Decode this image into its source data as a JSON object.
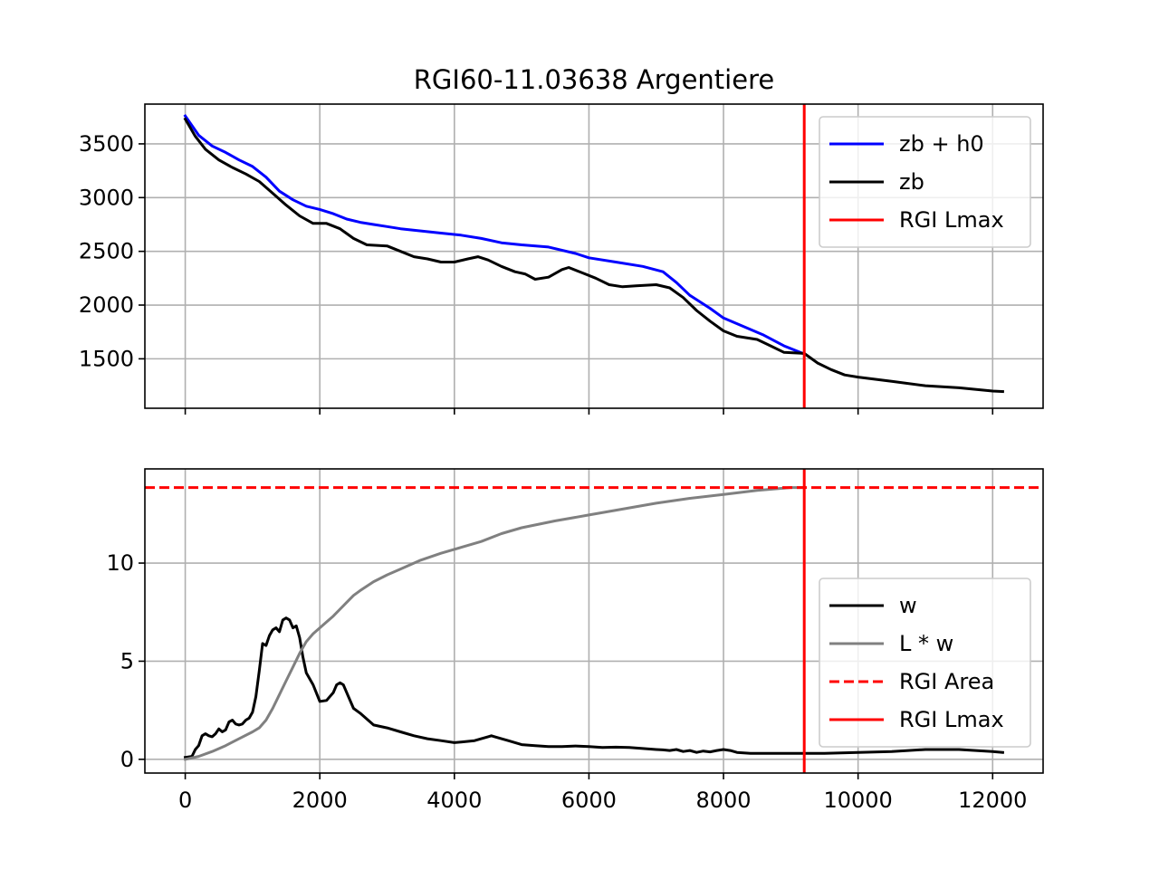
{
  "chart_data": [
    {
      "type": "line",
      "title": "RGI60-11.03638 Argentiere",
      "xlabel": "",
      "ylabel": "",
      "xlim": [
        -600,
        12750
      ],
      "ylim": [
        1040,
        3870
      ],
      "xticks": [
        0,
        2000,
        4000,
        6000,
        8000,
        10000,
        12000
      ],
      "xtick_labels": [
        "",
        "",
        "",
        "",
        "",
        "",
        ""
      ],
      "yticks": [
        1500,
        2000,
        2500,
        3000,
        3500
      ],
      "ytick_labels": [
        "1500",
        "2000",
        "2500",
        "3000",
        "3500"
      ],
      "grid": true,
      "legend_position": "upper right",
      "series": [
        {
          "name": "zb + h0",
          "color": "#0000ff",
          "style": "solid",
          "x": [
            0,
            200,
            400,
            600,
            800,
            1000,
            1200,
            1400,
            1600,
            1800,
            2000,
            2200,
            2400,
            2600,
            2800,
            3000,
            3200,
            3500,
            3800,
            4100,
            4400,
            4700,
            5000,
            5400,
            5800,
            6000,
            6400,
            6800,
            7100,
            7300,
            7500,
            7800,
            8000,
            8300,
            8600,
            8900,
            9200
          ],
          "y": [
            3760,
            3580,
            3480,
            3420,
            3350,
            3290,
            3190,
            3060,
            2980,
            2920,
            2890,
            2850,
            2800,
            2770,
            2750,
            2730,
            2710,
            2690,
            2670,
            2650,
            2620,
            2580,
            2560,
            2540,
            2480,
            2440,
            2400,
            2360,
            2310,
            2210,
            2090,
            1970,
            1880,
            1800,
            1720,
            1620,
            1545
          ]
        },
        {
          "name": "zb",
          "color": "#000000",
          "style": "solid",
          "x": [
            0,
            150,
            300,
            500,
            700,
            900,
            1100,
            1300,
            1500,
            1700,
            1900,
            2100,
            2300,
            2500,
            2700,
            3000,
            3200,
            3400,
            3600,
            3800,
            4000,
            4200,
            4350,
            4500,
            4700,
            4900,
            5050,
            5200,
            5400,
            5600,
            5700,
            5900,
            6100,
            6300,
            6500,
            6700,
            7000,
            7200,
            7400,
            7600,
            7800,
            8000,
            8200,
            8500,
            8700,
            8900,
            9200,
            9400,
            9600,
            9800,
            10000,
            10500,
            11000,
            11500,
            12000,
            12150
          ],
          "y": [
            3730,
            3570,
            3450,
            3350,
            3280,
            3220,
            3150,
            3040,
            2930,
            2830,
            2760,
            2760,
            2710,
            2620,
            2560,
            2550,
            2500,
            2450,
            2430,
            2400,
            2400,
            2430,
            2450,
            2420,
            2360,
            2310,
            2290,
            2240,
            2260,
            2330,
            2350,
            2300,
            2250,
            2190,
            2170,
            2180,
            2190,
            2160,
            2070,
            1950,
            1850,
            1760,
            1710,
            1680,
            1620,
            1560,
            1550,
            1460,
            1400,
            1350,
            1330,
            1290,
            1250,
            1230,
            1200,
            1195
          ]
        },
        {
          "name": "RGI Lmax",
          "color": "#ff0000",
          "style": "solid",
          "orientation": "vertical",
          "x": [
            9200,
            9200
          ],
          "y": [
            1040,
            3870
          ]
        }
      ]
    },
    {
      "type": "line",
      "title": "",
      "xlabel": "",
      "ylabel": "",
      "xlim": [
        -600,
        12750
      ],
      "ylim": [
        -0.7,
        14.8
      ],
      "xticks": [
        0,
        2000,
        4000,
        6000,
        8000,
        10000,
        12000
      ],
      "xtick_labels": [
        "0",
        "2000",
        "4000",
        "6000",
        "8000",
        "10000",
        "12000"
      ],
      "yticks": [
        0,
        5,
        10
      ],
      "ytick_labels": [
        "0",
        "5",
        "10"
      ],
      "grid": true,
      "legend_position": "center right",
      "series": [
        {
          "name": "w",
          "color": "#000000",
          "style": "solid",
          "x": [
            0,
            100,
            150,
            200,
            250,
            300,
            350,
            400,
            450,
            500,
            550,
            600,
            650,
            700,
            750,
            800,
            850,
            900,
            950,
            1000,
            1050,
            1100,
            1150,
            1200,
            1250,
            1300,
            1350,
            1400,
            1450,
            1500,
            1550,
            1600,
            1650,
            1700,
            1750,
            1800,
            1900,
            2000,
            2100,
            2200,
            2250,
            2300,
            2350,
            2400,
            2500,
            2600,
            2800,
            3000,
            3200,
            3400,
            3600,
            3800,
            4000,
            4100,
            4300,
            4400,
            4500,
            4550,
            4600,
            4700,
            4800,
            5000,
            5200,
            5400,
            5600,
            5800,
            6000,
            6200,
            6400,
            6600,
            6800,
            7000,
            7100,
            7200,
            7300,
            7400,
            7500,
            7600,
            7700,
            7800,
            7900,
            8000,
            8100,
            8200,
            8400,
            8600,
            8800,
            9000,
            9200,
            9500,
            10000,
            10500,
            11000,
            11500,
            12000,
            12150
          ],
          "y": [
            0.1,
            0.15,
            0.5,
            0.7,
            1.2,
            1.3,
            1.2,
            1.15,
            1.3,
            1.55,
            1.4,
            1.5,
            1.9,
            2.0,
            1.8,
            1.75,
            1.8,
            2.0,
            2.1,
            2.4,
            3.2,
            4.5,
            5.9,
            5.8,
            6.3,
            6.6,
            6.7,
            6.5,
            7.1,
            7.2,
            7.1,
            6.7,
            6.8,
            6.2,
            5.2,
            4.4,
            3.8,
            2.95,
            3.0,
            3.4,
            3.8,
            3.9,
            3.8,
            3.4,
            2.6,
            2.35,
            1.75,
            1.6,
            1.4,
            1.2,
            1.05,
            0.95,
            0.85,
            0.88,
            0.95,
            1.05,
            1.15,
            1.2,
            1.15,
            1.05,
            0.95,
            0.75,
            0.7,
            0.65,
            0.65,
            0.68,
            0.65,
            0.6,
            0.62,
            0.6,
            0.55,
            0.5,
            0.48,
            0.45,
            0.5,
            0.4,
            0.45,
            0.35,
            0.42,
            0.38,
            0.45,
            0.5,
            0.45,
            0.35,
            0.3,
            0.3,
            0.3,
            0.3,
            0.3,
            0.3,
            0.35,
            0.4,
            0.5,
            0.5,
            0.4,
            0.35
          ]
        },
        {
          "name": "L * w",
          "color": "#808080",
          "style": "solid",
          "x": [
            0,
            200,
            400,
            600,
            800,
            1000,
            1100,
            1200,
            1300,
            1400,
            1500,
            1600,
            1700,
            1800,
            1900,
            2000,
            2100,
            2200,
            2300,
            2400,
            2500,
            2600,
            2800,
            3000,
            3200,
            3500,
            3800,
            4100,
            4400,
            4700,
            5000,
            5500,
            6000,
            6500,
            7000,
            7500,
            8000,
            8500,
            9000,
            9200
          ],
          "y": [
            0,
            0.15,
            0.4,
            0.7,
            1.05,
            1.4,
            1.6,
            2.0,
            2.6,
            3.3,
            4.0,
            4.7,
            5.4,
            6.0,
            6.4,
            6.7,
            7.0,
            7.3,
            7.65,
            8.0,
            8.35,
            8.6,
            9.05,
            9.4,
            9.7,
            10.15,
            10.5,
            10.8,
            11.1,
            11.5,
            11.8,
            12.15,
            12.45,
            12.75,
            13.05,
            13.3,
            13.5,
            13.7,
            13.85,
            13.85
          ]
        },
        {
          "name": "RGI Area",
          "color": "#ff0000",
          "style": "dashed",
          "orientation": "horizontal",
          "x": [
            -600,
            12750
          ],
          "y": [
            13.85,
            13.85
          ]
        },
        {
          "name": "RGI Lmax",
          "color": "#ff0000",
          "style": "solid",
          "orientation": "vertical",
          "x": [
            9200,
            9200
          ],
          "y": [
            -0.7,
            14.8
          ]
        }
      ]
    }
  ]
}
